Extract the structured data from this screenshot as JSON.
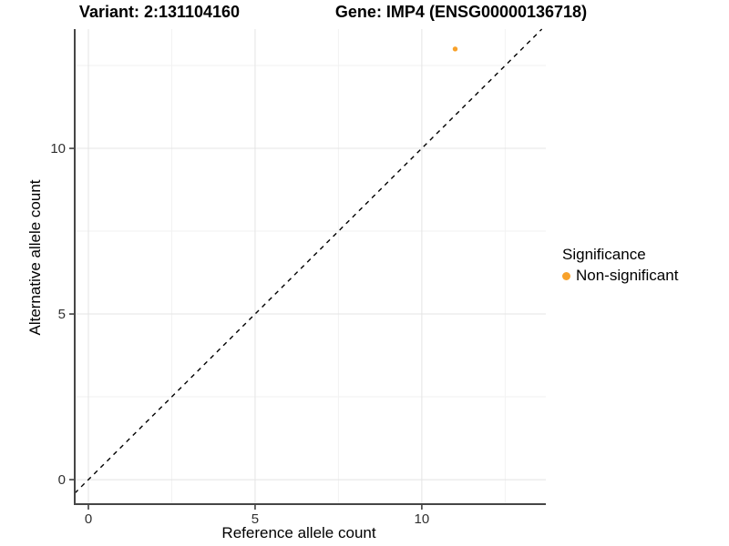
{
  "titles": {
    "left": "Variant: 2:131104160",
    "right": "Gene: IMP4 (ENSG00000136718)"
  },
  "axes": {
    "x_label": "Reference allele count",
    "y_label": "Alternative allele count"
  },
  "legend": {
    "title": "Significance",
    "items": [
      {
        "label": "Non-significant",
        "color": "#F8A22B"
      }
    ]
  },
  "chart_data": {
    "type": "scatter",
    "title": "Variant: 2:131104160   Gene: IMP4 (ENSG00000136718)",
    "xlabel": "Reference allele count",
    "ylabel": "Alternative allele count",
    "xlim": [
      -0.41,
      13.72
    ],
    "ylim": [
      -0.74,
      13.6
    ],
    "x_ticks": [
      0,
      5,
      10
    ],
    "y_ticks": [
      0,
      5,
      10
    ],
    "x_minor_ticks": [
      2.5,
      7.5,
      12.5
    ],
    "y_minor_ticks": [
      2.5,
      7.5,
      12.5
    ],
    "grid": {
      "major_color": "#E4E4E4",
      "minor_color": "#F2F2F2",
      "grid_on": true
    },
    "axis_color": "#464646",
    "tick_color": "#333333",
    "reference_line": {
      "type": "identity",
      "style": "dashed",
      "color": "#000000"
    },
    "series": [
      {
        "name": "Non-significant",
        "color": "#F8A22B",
        "points": [
          {
            "x": 11,
            "y": 13
          }
        ]
      }
    ],
    "legend_position": "right"
  }
}
